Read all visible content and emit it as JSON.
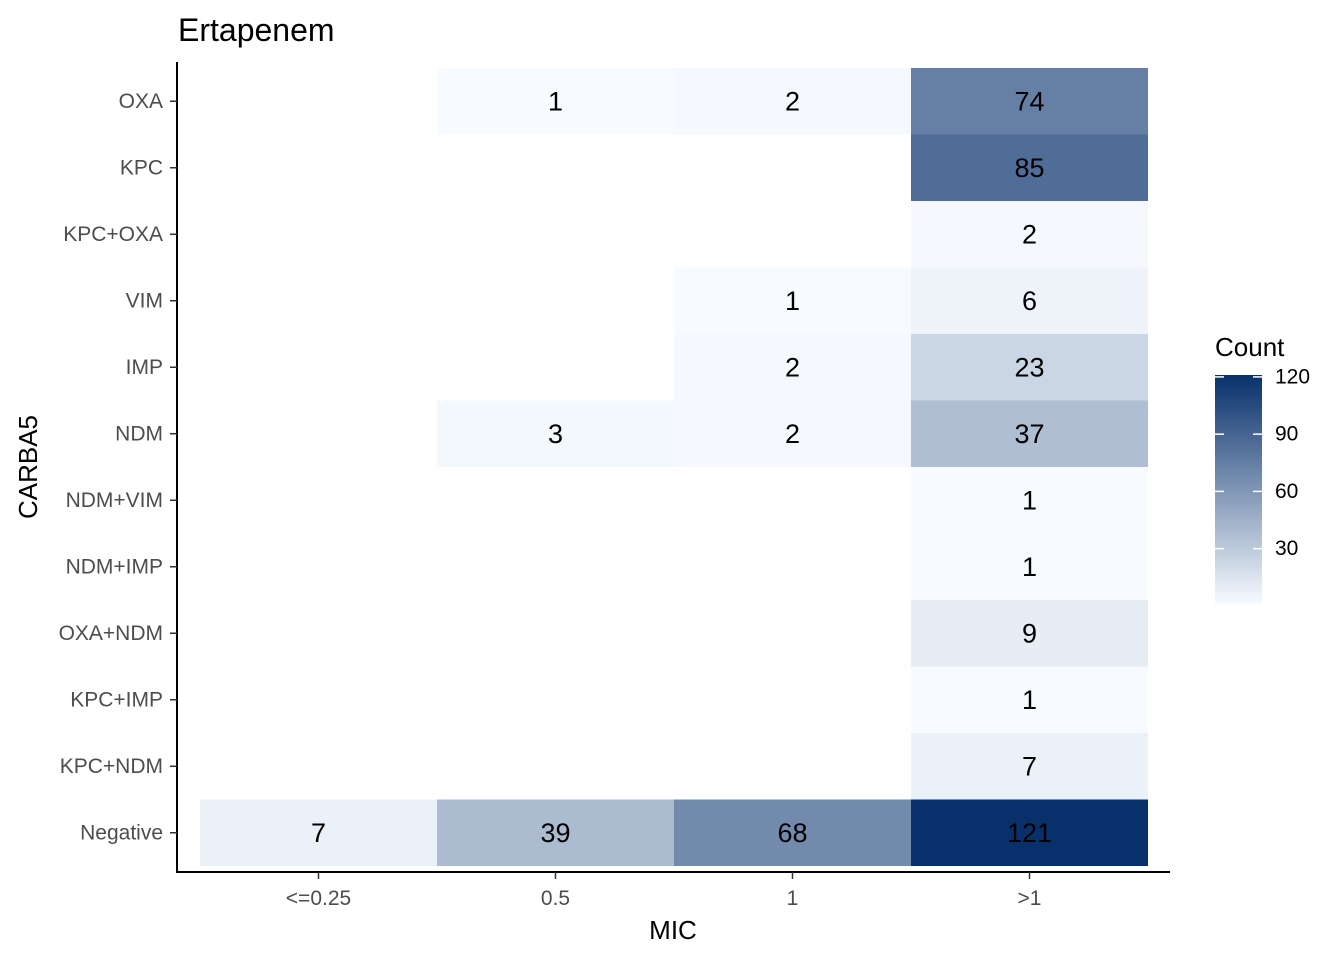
{
  "chart_data": {
    "type": "heatmap",
    "title": "Ertapenem",
    "xlabel": "MIC",
    "ylabel": "CARBA5",
    "x_categories": [
      "<=0.25",
      "0.5",
      "1",
      ">1"
    ],
    "y_categories": [
      "OXA",
      "KPC",
      "KPC+OXA",
      "VIM",
      "IMP",
      "NDM",
      "NDM+VIM",
      "NDM+IMP",
      "OXA+NDM",
      "KPC+IMP",
      "KPC+NDM",
      "Negative"
    ],
    "cells": [
      {
        "y": "OXA",
        "x": "0.5",
        "value": 1
      },
      {
        "y": "OXA",
        "x": "1",
        "value": 2
      },
      {
        "y": "OXA",
        "x": ">1",
        "value": 74
      },
      {
        "y": "KPC",
        "x": ">1",
        "value": 85
      },
      {
        "y": "KPC+OXA",
        "x": ">1",
        "value": 2
      },
      {
        "y": "VIM",
        "x": "1",
        "value": 1
      },
      {
        "y": "VIM",
        "x": ">1",
        "value": 6
      },
      {
        "y": "IMP",
        "x": "1",
        "value": 2
      },
      {
        "y": "IMP",
        "x": ">1",
        "value": 23
      },
      {
        "y": "NDM",
        "x": "0.5",
        "value": 3
      },
      {
        "y": "NDM",
        "x": "1",
        "value": 2
      },
      {
        "y": "NDM",
        "x": ">1",
        "value": 37
      },
      {
        "y": "NDM+VIM",
        "x": ">1",
        "value": 1
      },
      {
        "y": "NDM+IMP",
        "x": ">1",
        "value": 1
      },
      {
        "y": "OXA+NDM",
        "x": ">1",
        "value": 9
      },
      {
        "y": "KPC+IMP",
        "x": ">1",
        "value": 1
      },
      {
        "y": "KPC+NDM",
        "x": ">1",
        "value": 7
      },
      {
        "y": "Negative",
        "x": "<=0.25",
        "value": 7
      },
      {
        "y": "Negative",
        "x": "0.5",
        "value": 39
      },
      {
        "y": "Negative",
        "x": "1",
        "value": 68
      },
      {
        "y": "Negative",
        "x": ">1",
        "value": 121
      }
    ],
    "legend": {
      "title": "Count",
      "position": "right",
      "ticks": [
        30,
        60,
        90,
        120
      ],
      "range": [
        1,
        121
      ],
      "color_low": "#f7fbff",
      "color_high": "#08306b"
    },
    "grid": false
  }
}
